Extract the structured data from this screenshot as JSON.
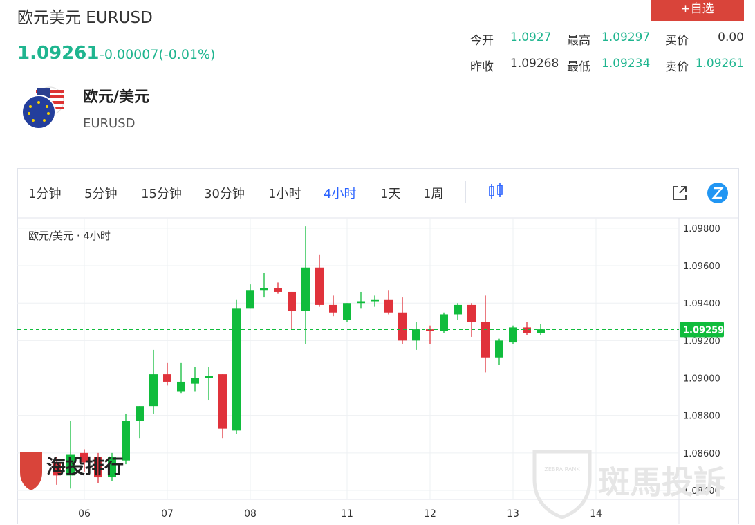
{
  "header": {
    "title": "欧元美元 EURUSD",
    "price": "1.09261",
    "change": "-0.00007(-0.01%)",
    "button": "+自选"
  },
  "stats": [
    {
      "label": "今开",
      "value": "1.0927"
    },
    {
      "label": "最高",
      "value": "1.09297"
    },
    {
      "label": "买价",
      "value": "0.00"
    },
    {
      "label": "昨收",
      "value": "1.09268"
    },
    {
      "label": "最低",
      "value": "1.09234"
    },
    {
      "label": "卖价",
      "value": "1.09261"
    }
  ],
  "symbol": {
    "name": "欧元/美元",
    "code": "EURUSD"
  },
  "toolbar": {
    "intervals": [
      "1分钟",
      "5分钟",
      "15分钟",
      "30分钟",
      "1小时",
      "4小时",
      "1天",
      "1周"
    ],
    "selected": 5
  },
  "watermarks": [
    "海投排行",
    "斑馬投訴",
    "ZEBRA RANK"
  ],
  "chart_data": {
    "type": "candlestick",
    "legend": "欧元/美元 · 4小时",
    "x": [
      0,
      1,
      2,
      3,
      4,
      5,
      6,
      7,
      8,
      9,
      10,
      11,
      12,
      13,
      14,
      15,
      16,
      17,
      18,
      19,
      20,
      21,
      22,
      23,
      24,
      25,
      26,
      27,
      28,
      29,
      30,
      31,
      32,
      33,
      34,
      35
    ],
    "open": [
      1.0855,
      1.0848,
      1.086,
      1.0858,
      1.0847,
      1.0856,
      1.0877,
      1.0885,
      1.0902,
      1.0893,
      1.0897,
      1.09,
      1.0902,
      1.0872,
      1.0937,
      1.0947,
      1.0948,
      1.0946,
      1.0936,
      1.0959,
      1.0939,
      1.0931,
      1.094,
      1.0941,
      1.0942,
      1.0935,
      1.092,
      1.0926,
      1.0925,
      1.0934,
      1.0939,
      1.093,
      1.0911,
      1.0919,
      1.0927,
      1.0924
    ],
    "high": [
      1.0858,
      1.0877,
      1.0862,
      1.086,
      1.086,
      1.0881,
      1.0885,
      1.0915,
      1.0908,
      1.0908,
      1.0906,
      1.0906,
      1.0902,
      1.0942,
      1.095,
      1.0956,
      1.0951,
      1.0946,
      1.0981,
      1.0966,
      1.0944,
      1.094,
      1.0946,
      1.0944,
      1.0947,
      1.0943,
      1.093,
      1.0928,
      1.0935,
      1.094,
      1.094,
      1.0944,
      1.0921,
      1.0928,
      1.093,
      1.0929
    ],
    "low": [
      1.0843,
      1.0841,
      1.085,
      1.0844,
      1.0845,
      1.0854,
      1.0868,
      1.0881,
      1.0896,
      1.0892,
      1.0893,
      1.0888,
      1.0868,
      1.087,
      1.0937,
      1.0943,
      1.0945,
      1.0926,
      1.0918,
      1.0938,
      1.0933,
      1.093,
      1.0937,
      1.0938,
      1.0934,
      1.0918,
      1.0915,
      1.0918,
      1.0924,
      1.0931,
      1.0922,
      1.0903,
      1.0907,
      1.0918,
      1.0923,
      1.0923
    ],
    "close": [
      1.0848,
      1.0859,
      1.0855,
      1.0847,
      1.0858,
      1.0877,
      1.0885,
      1.0902,
      1.0898,
      1.0898,
      1.09,
      1.0901,
      1.0873,
      1.0937,
      1.0947,
      1.0948,
      1.0946,
      1.0936,
      1.0959,
      1.0939,
      1.0935,
      1.094,
      1.0941,
      1.0942,
      1.0935,
      1.092,
      1.0926,
      1.0925,
      1.0934,
      1.0939,
      1.093,
      1.0911,
      1.092,
      1.0927,
      1.0924,
      1.0926
    ],
    "up_color": "#10bc3c",
    "down_color": "#e0323b",
    "last_price": 1.09259,
    "last_price_color": "#10bc3c",
    "xlim": [
      -2.85,
      45
    ],
    "xticks": [
      {
        "value": 2,
        "label": "06"
      },
      {
        "value": 8,
        "label": "07"
      },
      {
        "value": 14,
        "label": "08"
      },
      {
        "value": 21,
        "label": "11"
      },
      {
        "value": 27,
        "label": "12"
      },
      {
        "value": 33,
        "label": "13"
      },
      {
        "value": 39,
        "label": "14"
      }
    ],
    "ylim": [
      1.08352,
      1.09855
    ],
    "yticks": [
      {
        "value": 1.084,
        "label": "1.08400"
      },
      {
        "value": 1.086,
        "label": "1.08600"
      },
      {
        "value": 1.088,
        "label": "1.08800"
      },
      {
        "value": 1.09,
        "label": "1.09000"
      },
      {
        "value": 1.092,
        "label": "1.09200"
      },
      {
        "value": 1.094,
        "label": "1.09400"
      },
      {
        "value": 1.096,
        "label": "1.09600"
      },
      {
        "value": 1.098,
        "label": "1.09800"
      }
    ],
    "grid": true
  }
}
